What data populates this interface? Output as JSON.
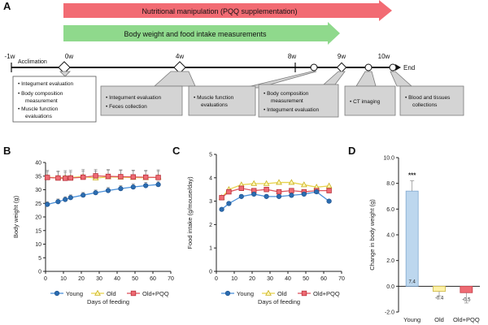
{
  "panel_labels": {
    "a": "A",
    "b": "B",
    "c": "C",
    "d": "D"
  },
  "timeline": {
    "arrows": [
      {
        "label": "Nutritional manipulation (PQQ supplementation)",
        "color": "#f26b73"
      },
      {
        "label": "Body weight and food intake measurements",
        "color": "#8fd98c"
      }
    ],
    "weeks": [
      "-1w",
      "0w",
      "4w",
      "8w",
      "9w",
      "10w"
    ],
    "acclimation": "Acclimation",
    "end_label": "End",
    "boxes": [
      {
        "items": [
          "Integument evaluation",
          "Body composition measurement",
          "Muscle function evaluations"
        ]
      },
      {
        "items": [
          "Integument evaluation",
          "Feces collection"
        ]
      },
      {
        "items": [
          "Muscle function evaluations"
        ]
      },
      {
        "items": [
          "Body composition measurement",
          "Integument evaluation"
        ]
      },
      {
        "items": [
          "CT imaging"
        ]
      },
      {
        "items": [
          "Blood and tissues collections"
        ]
      }
    ]
  },
  "colors": {
    "young": "#2b6cb0",
    "young_line": "#4a90d9",
    "old": "#e8d44d",
    "old_pqq": "#e0555f",
    "bar_young": "#bdd7ee",
    "bar_old": "#fff2a8",
    "bar_oldpqq": "#ee6b73"
  },
  "chart_data": [
    {
      "type": "line",
      "title": "B",
      "xlabel": "Days of feeding",
      "ylabel": "Body weight (g)",
      "xlim": [
        0,
        70
      ],
      "ylim": [
        0,
        40
      ],
      "xticks": [
        0,
        10,
        20,
        30,
        40,
        50,
        60,
        70
      ],
      "yticks": [
        0,
        5,
        10,
        15,
        20,
        25,
        30,
        35,
        40
      ],
      "series": [
        {
          "name": "Young",
          "marker": "circle",
          "x": [
            1,
            7,
            11,
            14,
            21,
            28,
            35,
            42,
            49,
            56,
            63
          ],
          "y": [
            24.6,
            25.6,
            26.4,
            27.1,
            28.0,
            28.9,
            29.7,
            30.4,
            31.0,
            31.5,
            31.9
          ],
          "err": [
            1.0,
            1.0,
            1.0,
            1.0,
            1.0,
            1.0,
            1.1,
            1.1,
            1.2,
            1.2,
            1.2
          ]
        },
        {
          "name": "Old",
          "marker": "triangle",
          "x": [
            1,
            7,
            11,
            14,
            21,
            28,
            35,
            42,
            49,
            56,
            63
          ],
          "y": [
            34.6,
            34.4,
            34.5,
            34.5,
            34.8,
            34.3,
            34.7,
            34.6,
            34.5,
            34.4,
            34.6
          ],
          "err": [
            2.5,
            2.5,
            2.5,
            2.6,
            2.6,
            2.6,
            2.7,
            2.7,
            2.7,
            2.7,
            2.7
          ]
        },
        {
          "name": "Old+PQQ",
          "marker": "square",
          "x": [
            1,
            7,
            11,
            14,
            21,
            28,
            35,
            42,
            49,
            56,
            63
          ],
          "y": [
            34.5,
            34.3,
            34.2,
            34.3,
            34.6,
            35.1,
            34.9,
            34.8,
            34.7,
            34.6,
            34.5
          ],
          "err": [
            2.2,
            2.2,
            2.2,
            2.2,
            2.3,
            2.3,
            2.3,
            2.3,
            2.3,
            2.3,
            2.3
          ]
        }
      ],
      "legend": "bottom"
    },
    {
      "type": "line",
      "title": "C",
      "xlabel": "Days of feeding",
      "ylabel": "Food intake (g/mouse/day)",
      "xlim": [
        0,
        70
      ],
      "ylim": [
        0,
        5
      ],
      "xticks": [
        0,
        10,
        20,
        30,
        40,
        50,
        60,
        70
      ],
      "yticks": [
        0,
        1,
        2,
        3,
        4,
        5
      ],
      "series": [
        {
          "name": "Young",
          "marker": "circle",
          "x": [
            3,
            7,
            14,
            21,
            28,
            35,
            42,
            49,
            56,
            63
          ],
          "y": [
            2.65,
            2.9,
            3.2,
            3.3,
            3.2,
            3.2,
            3.25,
            3.3,
            3.4,
            3.0
          ]
        },
        {
          "name": "Old",
          "marker": "triangle",
          "x": [
            3,
            7,
            14,
            21,
            28,
            35,
            42,
            49,
            56,
            63
          ],
          "y": [
            3.15,
            3.5,
            3.7,
            3.75,
            3.75,
            3.8,
            3.8,
            3.7,
            3.6,
            3.65
          ]
        },
        {
          "name": "Old+PQQ",
          "marker": "square",
          "x": [
            3,
            7,
            14,
            21,
            28,
            35,
            42,
            49,
            56,
            63
          ],
          "y": [
            3.15,
            3.4,
            3.55,
            3.45,
            3.5,
            3.4,
            3.45,
            3.4,
            3.45,
            3.45
          ]
        }
      ],
      "legend": "bottom"
    },
    {
      "type": "bar",
      "title": "D",
      "categories": [
        "Young",
        "Old",
        "Old+PQQ"
      ],
      "values": [
        7.4,
        -0.4,
        -0.5
      ],
      "errors": [
        0.8,
        0.35,
        0.8
      ],
      "value_labels": [
        "7.4",
        "-0.4",
        "-0.5"
      ],
      "significance": "***",
      "ylabel": "Change in body weight (g)",
      "ylim": [
        -2.0,
        10.0
      ],
      "yticks": [
        "-2.0",
        "0.0",
        "2.0",
        "4.0",
        "6.0",
        "8.0",
        "10.0"
      ]
    }
  ]
}
